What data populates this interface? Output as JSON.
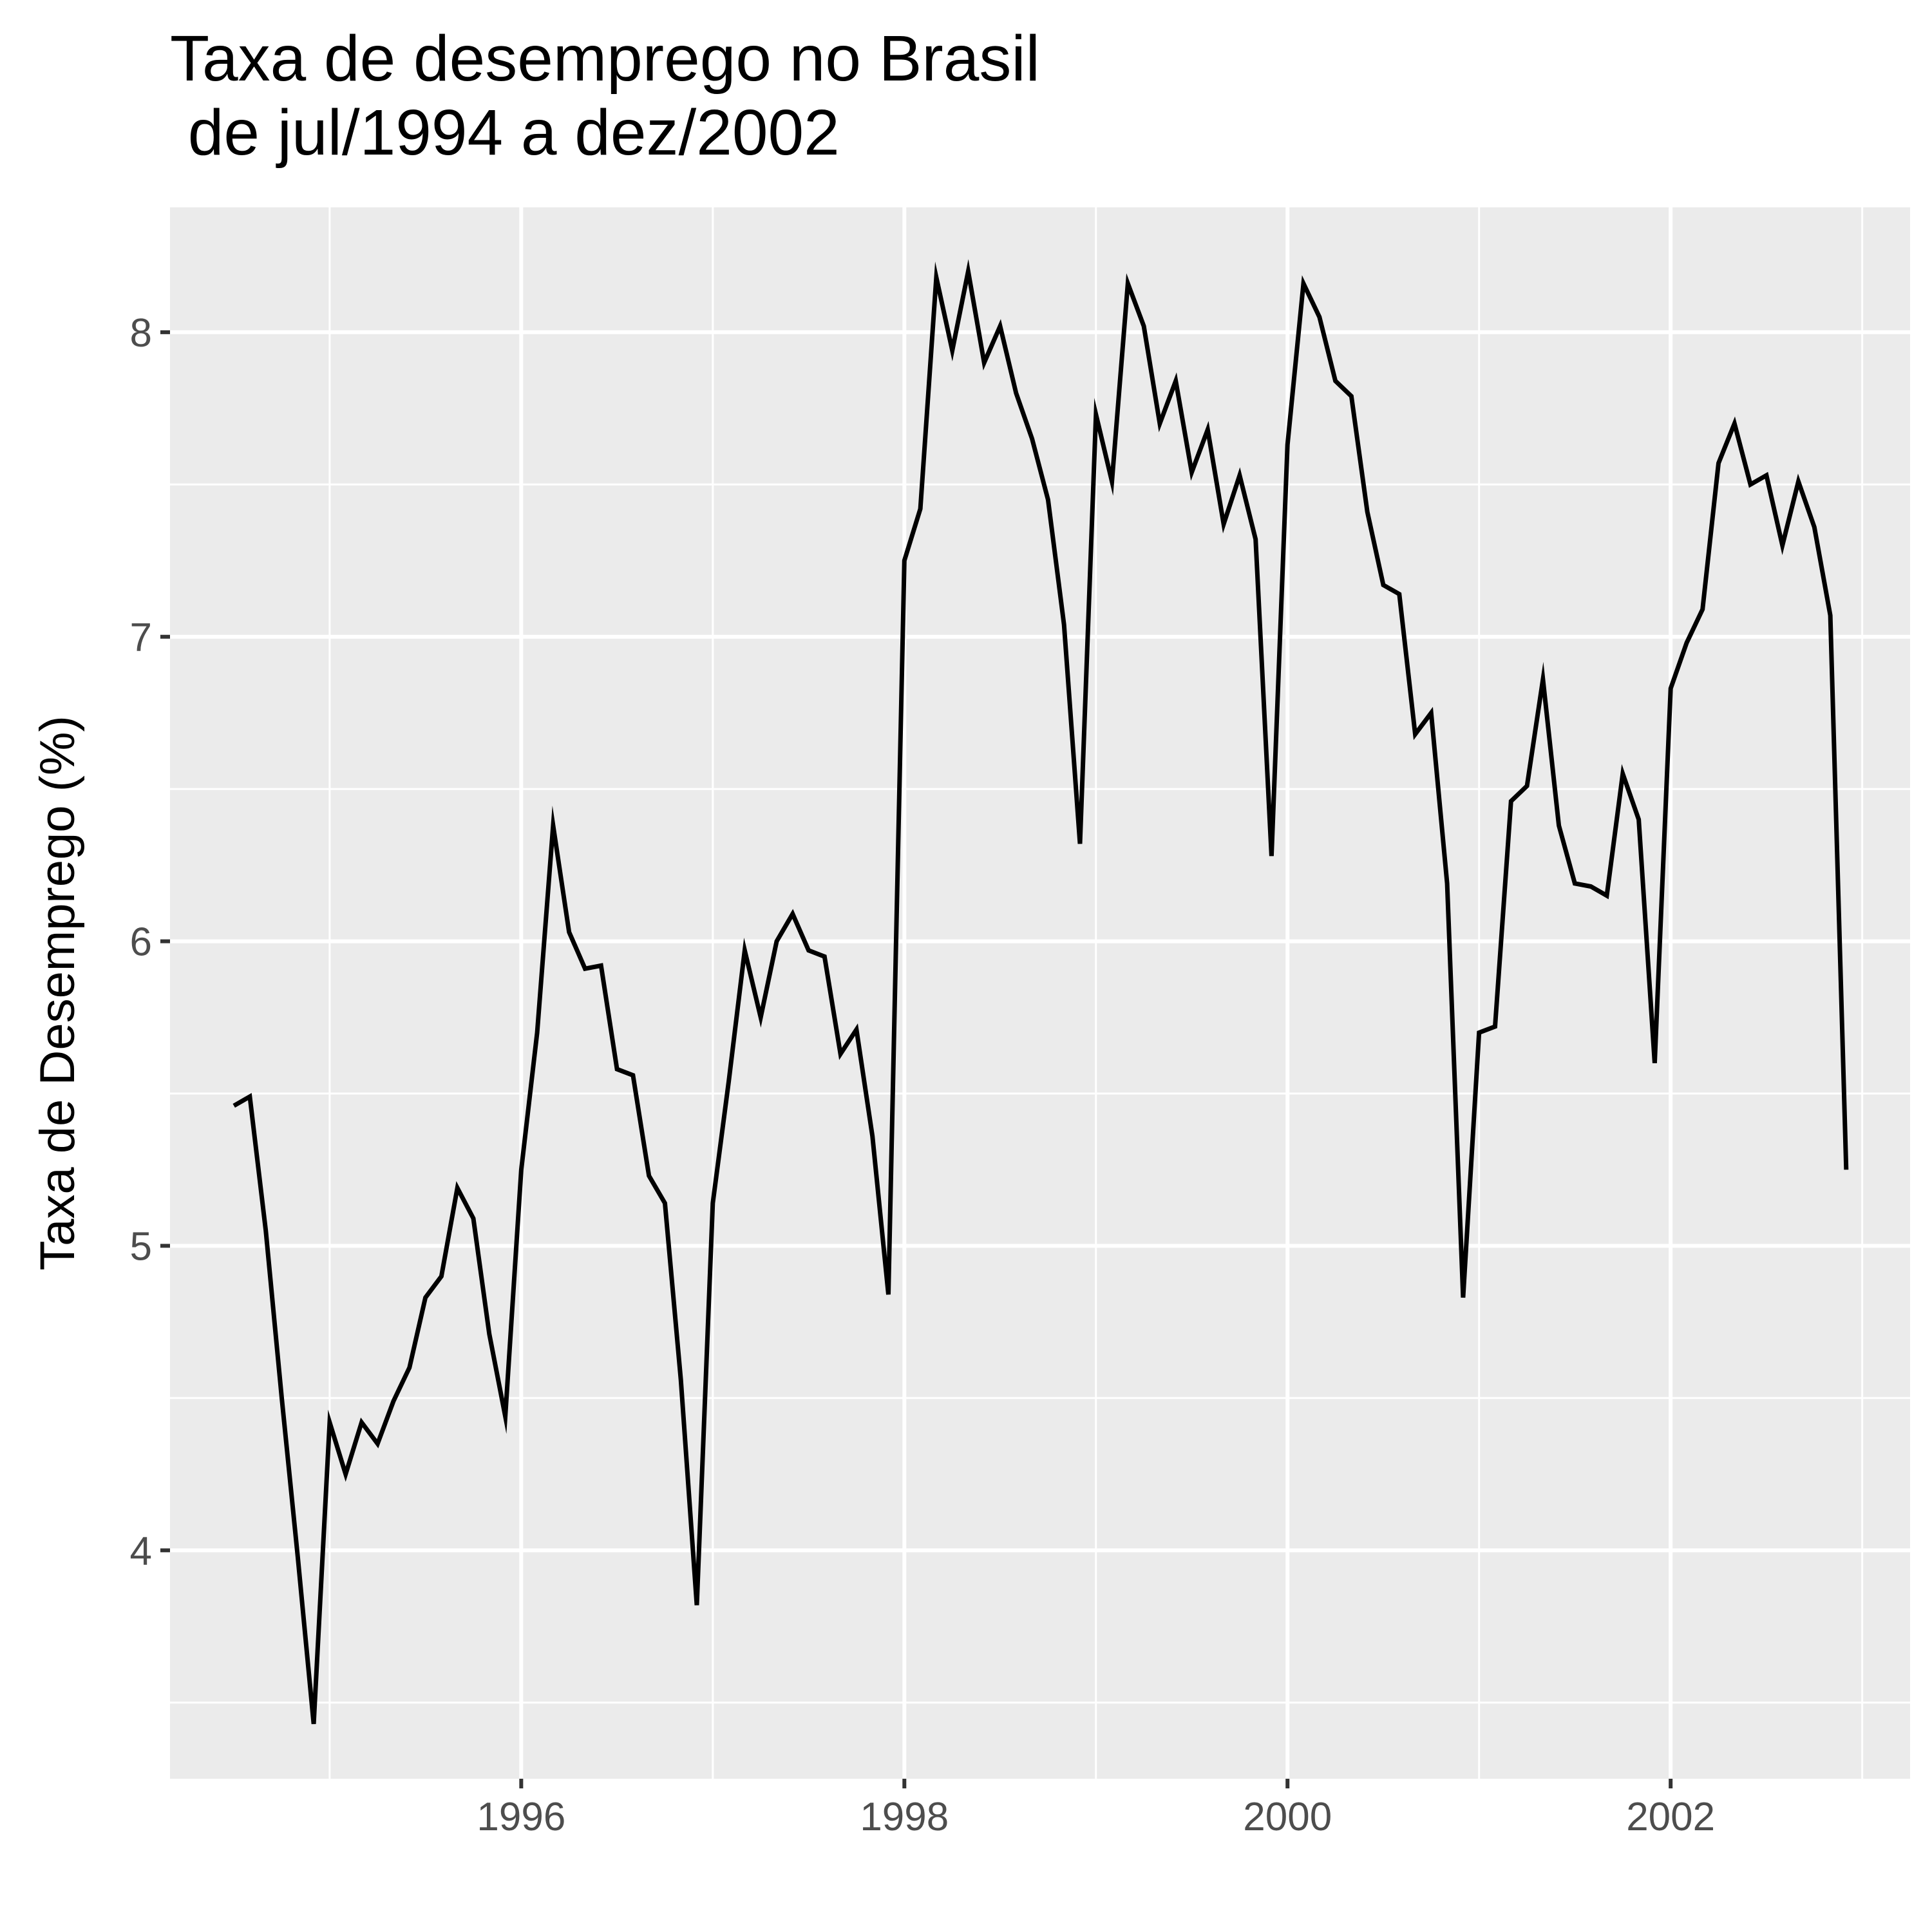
{
  "chart_data": {
    "type": "line",
    "title_line1": "Taxa de desemprego no Brasil",
    "title_line2": " de jul/1994 a dez/2002",
    "xlabel": "",
    "ylabel": "Taxa de Desemprego (%)",
    "x_start": "1994-07",
    "x_end": "2002-12",
    "xlim": [
      "1994-03",
      "2003-04"
    ],
    "ylim": [
      3.25,
      8.41
    ],
    "x_ticks": [
      "1996",
      "1998",
      "2000",
      "2002"
    ],
    "y_ticks": [
      4,
      5,
      6,
      7,
      8
    ],
    "grid": true,
    "line_color": "#000000",
    "panel_background": "#ebebeb",
    "values": [
      5.46,
      5.49,
      5.05,
      4.5,
      3.98,
      3.43,
      4.42,
      4.25,
      4.42,
      4.35,
      4.49,
      4.6,
      4.83,
      4.9,
      5.19,
      5.09,
      4.71,
      4.44,
      5.25,
      5.7,
      6.38,
      6.03,
      5.91,
      5.92,
      5.58,
      5.56,
      5.23,
      5.14,
      4.56,
      3.82,
      5.14,
      5.54,
      5.97,
      5.75,
      6.0,
      6.09,
      5.97,
      5.95,
      5.63,
      5.71,
      5.36,
      4.84,
      7.25,
      7.42,
      8.18,
      7.94,
      8.2,
      7.9,
      8.02,
      7.8,
      7.65,
      7.45,
      7.04,
      6.32,
      7.73,
      7.51,
      8.16,
      8.02,
      7.7,
      7.84,
      7.54,
      7.68,
      7.37,
      7.53,
      7.32,
      6.28,
      7.63,
      8.16,
      8.05,
      7.84,
      7.79,
      7.41,
      7.17,
      7.14,
      6.68,
      6.75,
      6.19,
      4.83,
      5.7,
      5.72,
      6.46,
      6.51,
      6.86,
      6.38,
      6.19,
      6.18,
      6.15,
      6.55,
      6.4,
      5.6,
      6.83,
      6.98,
      7.09,
      7.57,
      7.7,
      7.5,
      7.53,
      7.3,
      7.51,
      7.36,
      7.07,
      5.25
    ]
  }
}
